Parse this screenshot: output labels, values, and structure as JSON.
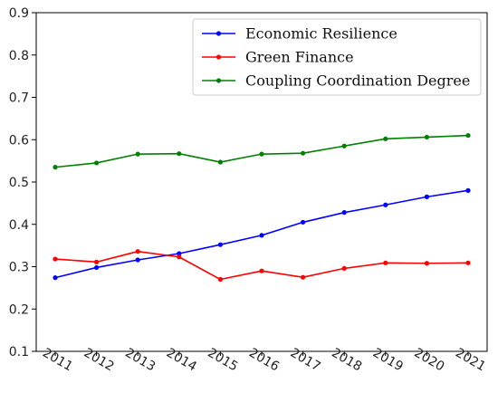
{
  "chart_data": {
    "type": "line",
    "title": "",
    "xlabel": "",
    "ylabel": "",
    "categories": [
      "2011",
      "2012",
      "2013",
      "2014",
      "2015",
      "2016",
      "2017",
      "2018",
      "2019",
      "2020",
      "2021"
    ],
    "ylim": [
      0.1,
      0.9
    ],
    "yticks": [
      "0.1",
      "0.2",
      "0.3",
      "0.4",
      "0.5",
      "0.6",
      "0.7",
      "0.8",
      "0.9"
    ],
    "grid": false,
    "legend_position": "top-right",
    "series": [
      {
        "name": "Economic Resilience",
        "color": "#0000ff",
        "values": [
          0.274,
          0.298,
          0.316,
          0.331,
          0.352,
          0.374,
          0.405,
          0.428,
          0.446,
          0.465,
          0.48
        ]
      },
      {
        "name": "Green Finance",
        "color": "#ff0000",
        "values": [
          0.318,
          0.311,
          0.336,
          0.323,
          0.27,
          0.29,
          0.275,
          0.296,
          0.309,
          0.308,
          0.309
        ]
      },
      {
        "name": "Coupling Coordination Degree",
        "color": "#008000",
        "values": [
          0.535,
          0.545,
          0.566,
          0.567,
          0.547,
          0.566,
          0.568,
          0.585,
          0.602,
          0.606,
          0.61
        ]
      }
    ]
  }
}
